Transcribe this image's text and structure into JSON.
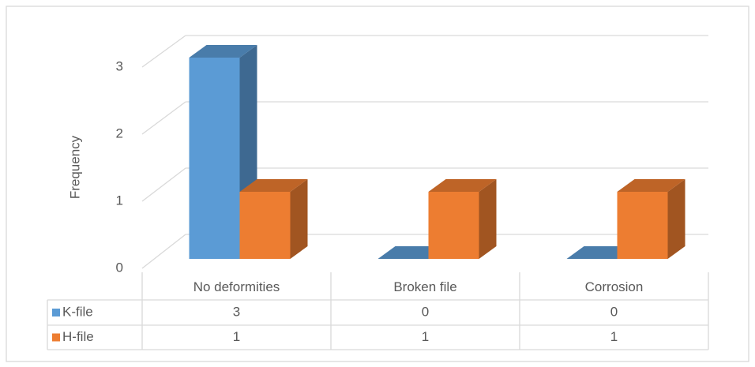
{
  "chart_data": {
    "type": "bar",
    "y_label": "Frequency",
    "categories": [
      "No deformities",
      "Broken file",
      "Corrosion"
    ],
    "series": [
      {
        "name": "K-file",
        "color": "#5b9bd5",
        "values": [
          3,
          0,
          0
        ]
      },
      {
        "name": "H-file",
        "color": "#ed7d31",
        "values": [
          1,
          1,
          1
        ]
      }
    ],
    "ylim": [
      0,
      3
    ],
    "yticks": [
      0,
      1,
      2,
      3
    ],
    "grid": true,
    "data_table": true
  }
}
